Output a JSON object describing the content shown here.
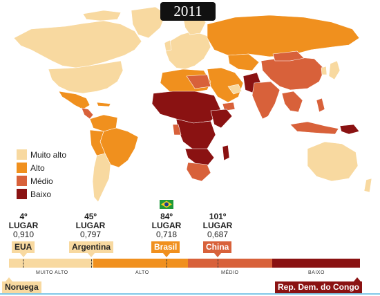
{
  "title": "2011",
  "colors": {
    "muito_alto": "#f8d9a0",
    "alto": "#f0901e",
    "medio": "#d8613a",
    "baixo": "#8a1212",
    "ocean": "#ffffff",
    "border": "#ffffff"
  },
  "legend": [
    {
      "label": "Muito alto",
      "color": "#f8d9a0"
    },
    {
      "label": "Alto",
      "color": "#f0901e"
    },
    {
      "label": "Médio",
      "color": "#d8613a"
    },
    {
      "label": "Baixo",
      "color": "#8a1212"
    }
  ],
  "rankings": [
    {
      "position": "4º",
      "lugar": "LUGAR",
      "value": "0,910",
      "country": "EUA"
    },
    {
      "position": "45º",
      "lugar": "LUGAR",
      "value": "0,797",
      "country": "Argentina"
    },
    {
      "position": "84º",
      "lugar": "LUGAR",
      "value": "0,718",
      "country": "Brasil",
      "icon": "brazil-flag-icon"
    },
    {
      "position": "101º",
      "lugar": "LUGAR",
      "value": "0,687",
      "country": "China"
    }
  ],
  "scale": {
    "segments": [
      {
        "label": "MUITO ALTO",
        "color": "#f8d9a0"
      },
      {
        "label": "ALTO",
        "color": "#f0901e"
      },
      {
        "label": "MÉDIO",
        "color": "#d8613a"
      },
      {
        "label": "BAIXO",
        "color": "#8a1212"
      }
    ],
    "top": "Noruega",
    "bottom": "Rep. Dem. do Congo"
  }
}
